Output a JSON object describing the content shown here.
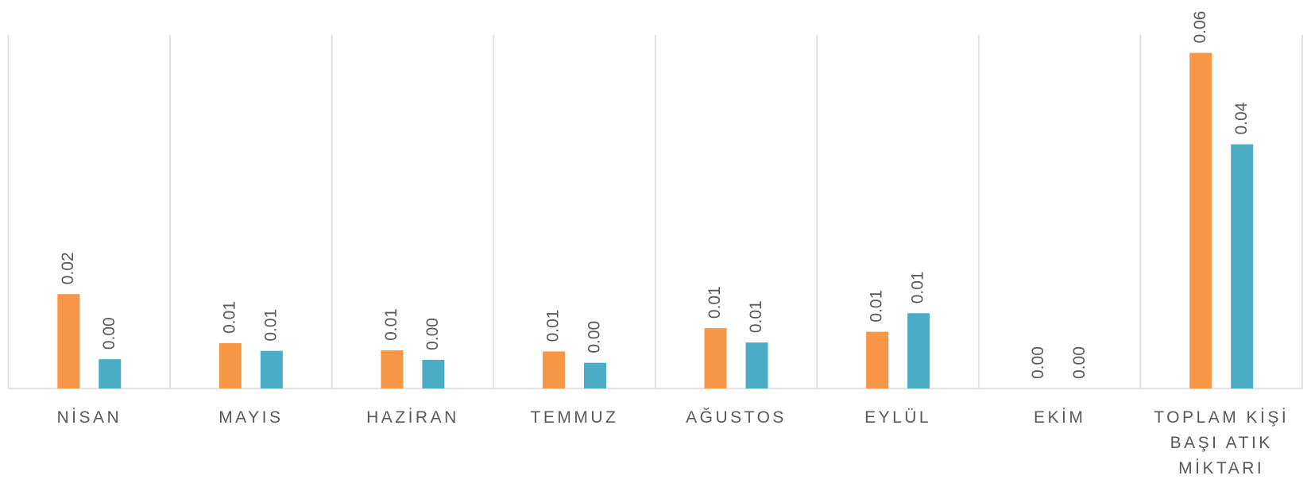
{
  "chart_data": {
    "type": "bar",
    "categories": [
      "NİSAN",
      "MAYIS",
      "HAZİRAN",
      "TEMMUZ",
      "AĞUSTOS",
      "EYLÜL",
      "EKİM",
      "TOPLAM KİŞİ BAŞI ATIK MİKTARI"
    ],
    "series": [
      {
        "color": "#f79646",
        "values": [
          0.0158,
          0.0076,
          0.0064,
          0.0062,
          0.0101,
          0.0095,
          0,
          0.0562
        ],
        "value_labels": [
          "0.02",
          "0.01",
          "0.01",
          "0.01",
          "0.01",
          "0.01",
          "0.00",
          "0.06"
        ]
      },
      {
        "color": "#4bacc6",
        "values": [
          0.0049,
          0.0063,
          0.0048,
          0.0043,
          0.0077,
          0.0126,
          0,
          0.0409
        ],
        "value_labels": [
          "0.00",
          "0.01",
          "0.00",
          "0.00",
          "0.01",
          "0.01",
          "0.00",
          "0.04"
        ]
      }
    ],
    "ylim": [
      0,
      0.0592
    ]
  }
}
